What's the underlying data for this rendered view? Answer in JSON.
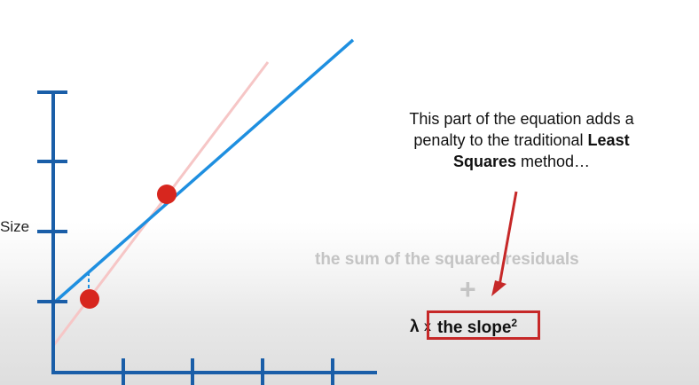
{
  "diagram": {
    "ylabel": "Size",
    "callout": {
      "line1": "This part of the equation adds a",
      "line2_pre": "penalty to the traditional ",
      "line2_bold": "Least",
      "line3_bold": "Squares",
      "line3_post": " method…"
    },
    "equation": {
      "sum_label": "the sum of the squared residuals",
      "plus": "+",
      "lambda": "λ",
      "times": "x",
      "slope_label": "the slope",
      "slope_exp": "2"
    },
    "colors": {
      "axis": "#1a5ea8",
      "ridge_line": "#1e8fe0",
      "ls_line": "#f6c6c6",
      "points": "#d7261e",
      "arrow": "#c62828",
      "faded_text": "#c4c4c4"
    }
  }
}
